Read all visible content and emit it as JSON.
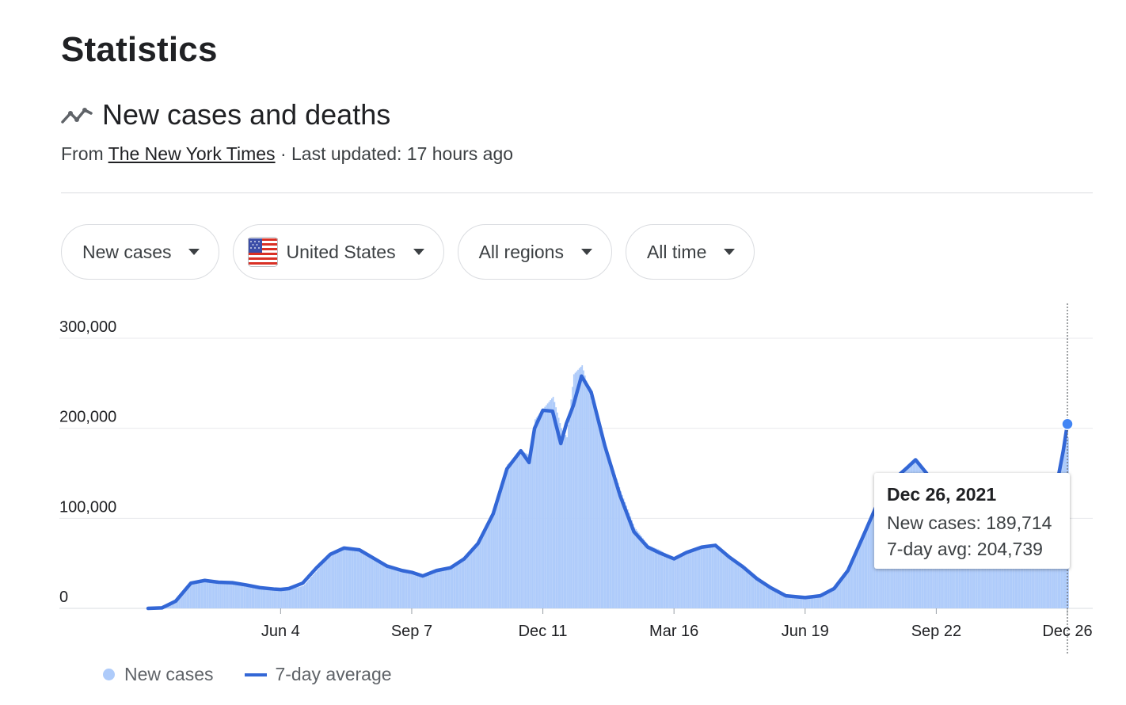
{
  "page": {
    "title": "Statistics"
  },
  "section": {
    "title": "New cases and deaths",
    "icon": "trending-line-icon",
    "source_prefix": "From ",
    "source_link": "The New York Times",
    "updated": " · Last updated: 17 hours ago"
  },
  "filters": {
    "metric": "New cases",
    "country": "United States",
    "country_icon": "us-flag-icon",
    "region": "All regions",
    "period": "All time"
  },
  "legend": {
    "bars": "New cases",
    "line": "7-day average"
  },
  "tooltip": {
    "date": "Dec 26, 2021",
    "new_cases": "New cases: 189,714",
    "avg": "7-day avg: 204,739"
  },
  "colors": {
    "bar": "#aecbfa",
    "line": "#3367d6",
    "grid": "#e8eaed",
    "axis": "#202124"
  },
  "chart_data": {
    "type": "bar",
    "title": "",
    "xlabel": "",
    "ylabel": "",
    "ylim": [
      0,
      300000
    ],
    "y_ticks": [
      0,
      100000,
      200000,
      300000
    ],
    "y_tick_labels": [
      "0",
      "100,000",
      "200,000",
      "300,000"
    ],
    "x_tick_labels": [
      "Jun 4",
      "Sep 7",
      "Dec 11",
      "Mar 16",
      "Jun 19",
      "Sep 22",
      "Dec 26"
    ],
    "x_range": [
      "2020-02-29",
      "2021-12-26"
    ],
    "x_ticks": [
      "2020-06-04",
      "2020-09-07",
      "2020-12-11",
      "2021-03-16",
      "2021-06-19",
      "2021-09-22",
      "2021-12-26"
    ],
    "series": [
      {
        "name": "New cases",
        "kind": "bars",
        "points": [
          [
            "2020-02-29",
            0
          ],
          [
            "2020-03-10",
            1000
          ],
          [
            "2020-03-20",
            10000
          ],
          [
            "2020-03-31",
            27000
          ],
          [
            "2020-04-10",
            33000
          ],
          [
            "2020-04-20",
            29000
          ],
          [
            "2020-04-30",
            30000
          ],
          [
            "2020-05-10",
            27000
          ],
          [
            "2020-05-20",
            23000
          ],
          [
            "2020-05-30",
            22000
          ],
          [
            "2020-06-04",
            21000
          ],
          [
            "2020-06-10",
            21000
          ],
          [
            "2020-06-20",
            25000
          ],
          [
            "2020-06-30",
            42000
          ],
          [
            "2020-07-10",
            60000
          ],
          [
            "2020-07-20",
            67000
          ],
          [
            "2020-07-31",
            64000
          ],
          [
            "2020-08-10",
            56000
          ],
          [
            "2020-08-20",
            46000
          ],
          [
            "2020-08-31",
            42000
          ],
          [
            "2020-09-07",
            40000
          ],
          [
            "2020-09-15",
            38000
          ],
          [
            "2020-09-25",
            43000
          ],
          [
            "2020-10-05",
            45000
          ],
          [
            "2020-10-15",
            58000
          ],
          [
            "2020-10-25",
            75000
          ],
          [
            "2020-11-05",
            110000
          ],
          [
            "2020-11-15",
            160000
          ],
          [
            "2020-11-25",
            175000
          ],
          [
            "2020-12-01",
            170000
          ],
          [
            "2020-12-05",
            210000
          ],
          [
            "2020-12-11",
            222000
          ],
          [
            "2020-12-18",
            235000
          ],
          [
            "2020-12-24",
            200000
          ],
          [
            "2020-12-28",
            190000
          ],
          [
            "2021-01-02",
            260000
          ],
          [
            "2021-01-08",
            270000
          ],
          [
            "2021-01-15",
            230000
          ],
          [
            "2021-01-25",
            180000
          ],
          [
            "2021-02-05",
            130000
          ],
          [
            "2021-02-15",
            90000
          ],
          [
            "2021-02-25",
            70000
          ],
          [
            "2021-03-05",
            65000
          ],
          [
            "2021-03-16",
            55000
          ],
          [
            "2021-03-25",
            62000
          ],
          [
            "2021-04-05",
            70000
          ],
          [
            "2021-04-15",
            70000
          ],
          [
            "2021-04-25",
            58000
          ],
          [
            "2021-05-05",
            48000
          ],
          [
            "2021-05-15",
            35000
          ],
          [
            "2021-05-25",
            24000
          ],
          [
            "2021-06-05",
            15000
          ],
          [
            "2021-06-19",
            12000
          ],
          [
            "2021-06-30",
            15000
          ],
          [
            "2021-07-10",
            24000
          ],
          [
            "2021-07-20",
            45000
          ],
          [
            "2021-07-31",
            85000
          ],
          [
            "2021-08-10",
            120000
          ],
          [
            "2021-08-20",
            145000
          ],
          [
            "2021-08-31",
            155000
          ],
          [
            "2021-09-07",
            165000
          ],
          [
            "2021-09-15",
            150000
          ],
          [
            "2021-09-22",
            130000
          ],
          [
            "2021-10-01",
            110000
          ],
          [
            "2021-10-10",
            95000
          ],
          [
            "2021-10-20",
            78000
          ],
          [
            "2021-10-31",
            72000
          ],
          [
            "2021-11-10",
            78000
          ],
          [
            "2021-11-20",
            95000
          ],
          [
            "2021-11-30",
            105000
          ],
          [
            "2021-12-10",
            120000
          ],
          [
            "2021-12-18",
            140000
          ],
          [
            "2021-12-23",
            180000
          ],
          [
            "2021-12-26",
            189714
          ]
        ]
      },
      {
        "name": "7-day average",
        "kind": "line",
        "points": [
          [
            "2020-02-29",
            0
          ],
          [
            "2020-03-10",
            500
          ],
          [
            "2020-03-20",
            8000
          ],
          [
            "2020-03-31",
            28000
          ],
          [
            "2020-04-10",
            31000
          ],
          [
            "2020-04-20",
            29000
          ],
          [
            "2020-04-30",
            28500
          ],
          [
            "2020-05-10",
            26000
          ],
          [
            "2020-05-20",
            23000
          ],
          [
            "2020-05-30",
            21500
          ],
          [
            "2020-06-04",
            21000
          ],
          [
            "2020-06-10",
            22000
          ],
          [
            "2020-06-20",
            28000
          ],
          [
            "2020-06-30",
            45000
          ],
          [
            "2020-07-10",
            60000
          ],
          [
            "2020-07-20",
            67000
          ],
          [
            "2020-07-31",
            65000
          ],
          [
            "2020-08-10",
            56000
          ],
          [
            "2020-08-20",
            47000
          ],
          [
            "2020-08-31",
            42000
          ],
          [
            "2020-09-07",
            40000
          ],
          [
            "2020-09-15",
            36000
          ],
          [
            "2020-09-25",
            42000
          ],
          [
            "2020-10-05",
            45000
          ],
          [
            "2020-10-15",
            55000
          ],
          [
            "2020-10-25",
            72000
          ],
          [
            "2020-11-05",
            105000
          ],
          [
            "2020-11-15",
            155000
          ],
          [
            "2020-11-25",
            175000
          ],
          [
            "2020-12-01",
            162000
          ],
          [
            "2020-12-05",
            200000
          ],
          [
            "2020-12-11",
            220000
          ],
          [
            "2020-12-18",
            219000
          ],
          [
            "2020-12-24",
            183000
          ],
          [
            "2020-12-28",
            205000
          ],
          [
            "2021-01-02",
            225000
          ],
          [
            "2021-01-08",
            258000
          ],
          [
            "2021-01-15",
            240000
          ],
          [
            "2021-01-25",
            180000
          ],
          [
            "2021-02-05",
            125000
          ],
          [
            "2021-02-15",
            85000
          ],
          [
            "2021-02-25",
            68000
          ],
          [
            "2021-03-05",
            62000
          ],
          [
            "2021-03-16",
            55000
          ],
          [
            "2021-03-25",
            62000
          ],
          [
            "2021-04-05",
            68000
          ],
          [
            "2021-04-15",
            70000
          ],
          [
            "2021-04-25",
            57000
          ],
          [
            "2021-05-05",
            46000
          ],
          [
            "2021-05-15",
            33000
          ],
          [
            "2021-05-25",
            23000
          ],
          [
            "2021-06-05",
            14000
          ],
          [
            "2021-06-19",
            12000
          ],
          [
            "2021-06-30",
            14000
          ],
          [
            "2021-07-10",
            22000
          ],
          [
            "2021-07-20",
            42000
          ],
          [
            "2021-07-31",
            80000
          ],
          [
            "2021-08-10",
            115000
          ],
          [
            "2021-08-20",
            140000
          ],
          [
            "2021-08-31",
            155000
          ],
          [
            "2021-09-07",
            165000
          ],
          [
            "2021-09-15",
            150000
          ],
          [
            "2021-09-22",
            128000
          ],
          [
            "2021-10-01",
            105000
          ],
          [
            "2021-10-10",
            92000
          ],
          [
            "2021-10-20",
            75000
          ],
          [
            "2021-10-31",
            72000
          ],
          [
            "2021-11-10",
            78000
          ],
          [
            "2021-11-20",
            92000
          ],
          [
            "2021-11-30",
            100000
          ],
          [
            "2021-12-10",
            118000
          ],
          [
            "2021-12-18",
            135000
          ],
          [
            "2021-12-23",
            175000
          ],
          [
            "2021-12-26",
            204739
          ]
        ]
      }
    ],
    "grid": true,
    "legend_position": "bottom-left"
  }
}
